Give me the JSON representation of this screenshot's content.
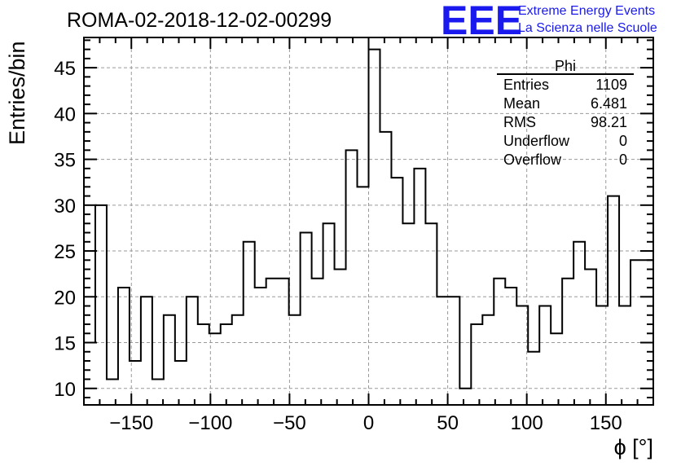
{
  "header": {
    "title": "ROMA-02-2018-12-02-00299",
    "logo_letters": "EEE",
    "logo_line1": "Extreme Energy Events",
    "logo_line2": "La Scienza nelle Scuole",
    "logo_color": "#1a1aee"
  },
  "stats": {
    "name": "Phi",
    "rows": [
      {
        "label": "Entries",
        "value": "1109"
      },
      {
        "label": "Mean",
        "value": "6.481"
      },
      {
        "label": "RMS",
        "value": "98.21"
      },
      {
        "label": "Underflow",
        "value": "0"
      },
      {
        "label": "Overflow",
        "value": "0"
      }
    ]
  },
  "chart_data": {
    "type": "bar",
    "style": "step-histogram",
    "xlabel": "ϕ [°]",
    "ylabel": "Entries/bin",
    "xlim": [
      -180,
      180
    ],
    "ylim": [
      8.2,
      48.3
    ],
    "bin_width": 7.2,
    "x_ticks": [
      -150,
      -100,
      -50,
      0,
      50,
      100,
      150
    ],
    "x_tick_labels": [
      "−150",
      "−100",
      "−50",
      "0",
      "50",
      "100",
      "150"
    ],
    "y_ticks": [
      10,
      15,
      20,
      25,
      30,
      35,
      40,
      45
    ],
    "y_tick_labels": [
      "10",
      "15",
      "20",
      "25",
      "30",
      "35",
      "40",
      "45"
    ],
    "grid": true,
    "legend": "top-right stats box",
    "line_color": "#000000",
    "values": [
      15,
      30,
      11,
      21,
      13,
      20,
      11,
      18,
      13,
      20,
      17,
      16,
      17,
      18,
      26,
      21,
      22,
      22,
      18,
      27,
      22,
      28,
      23,
      36,
      32,
      47,
      38,
      33,
      28,
      34,
      28,
      20,
      20,
      10,
      17,
      18,
      22,
      21,
      19,
      14,
      19,
      16,
      22,
      26,
      23,
      19,
      31,
      19,
      24,
      24
    ]
  }
}
